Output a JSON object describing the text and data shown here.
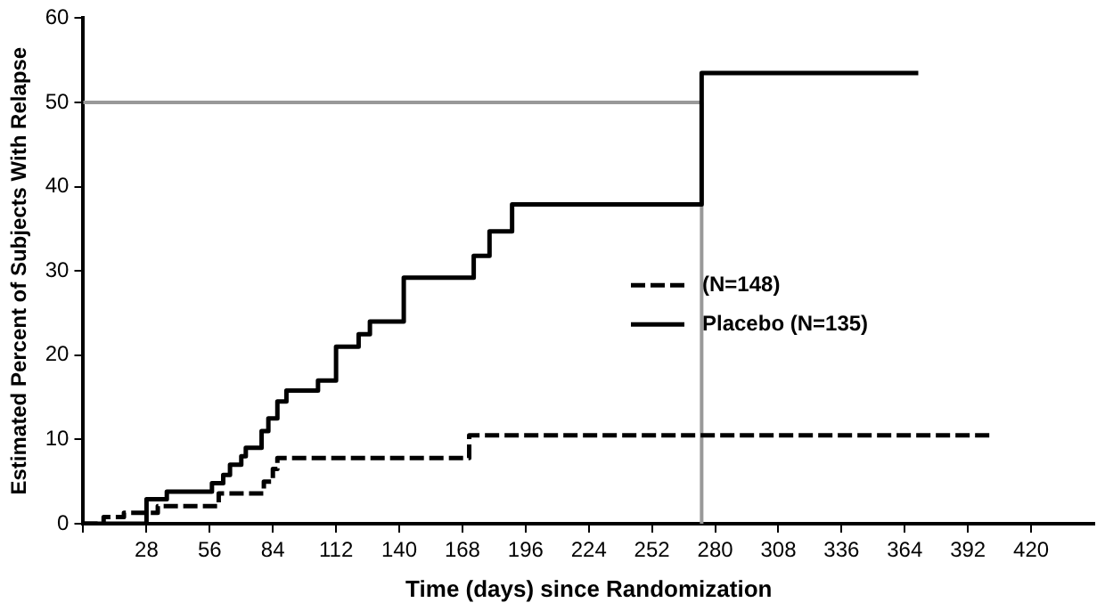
{
  "chart_data": {
    "type": "step",
    "xlabel": "Time (days) since Randomization",
    "ylabel": "Estimated Percent of Subjects With Relapse",
    "xlim": [
      0,
      448
    ],
    "xticks": [
      {
        "value": 0,
        "label": null
      },
      28,
      56,
      84,
      112,
      140,
      168,
      196,
      224,
      252,
      280,
      308,
      336,
      364,
      392,
      420
    ],
    "ylim": [
      0,
      60
    ],
    "yticks": [
      0,
      10,
      20,
      30,
      40,
      50,
      60
    ],
    "grid": false,
    "legend": "right",
    "marker": "none",
    "series": [
      {
        "name": "(N=148)",
        "color": "#000000",
        "line_style": "dashed",
        "x": [
          0,
          9,
          18,
          33,
          60,
          80,
          84,
          86,
          171,
          402
        ],
        "values": [
          0,
          0.8,
          1.3,
          2.1,
          3.6,
          5,
          6.5,
          7.8,
          10.5,
          10.5
        ]
      },
      {
        "name": "Placebo (N=135)",
        "color": "#000000",
        "line_style": "solid",
        "x": [
          0,
          28,
          37,
          57,
          62,
          65,
          70,
          72,
          79,
          82,
          86,
          90,
          104,
          112,
          122,
          127,
          142,
          173,
          180,
          190,
          274,
          370
        ],
        "values": [
          0,
          2.9,
          3.8,
          4.8,
          5.8,
          7,
          8,
          9,
          11,
          12.5,
          14.5,
          15.8,
          17,
          21,
          22.5,
          24,
          29.2,
          31.8,
          34.7,
          37.9,
          53.5,
          53.5
        ]
      }
    ],
    "ref_lines": [
      {
        "axis": "y",
        "value": 50,
        "color": "#999999"
      },
      {
        "axis": "x",
        "value": 274,
        "color": "#999999"
      }
    ]
  }
}
